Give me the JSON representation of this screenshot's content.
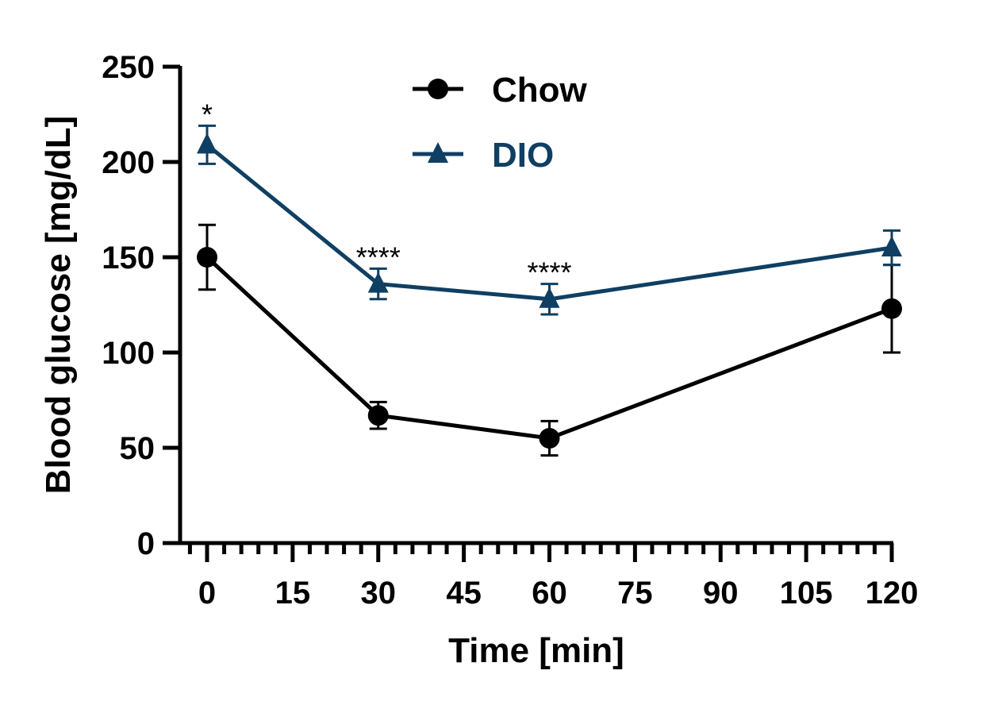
{
  "chart_data": {
    "type": "line",
    "xlabel": "Time [min]",
    "ylabel": "Blood glucose [mg/dL]",
    "xlim": [
      -5,
      120
    ],
    "ylim": [
      0,
      250
    ],
    "x_ticks": [
      0,
      15,
      30,
      45,
      60,
      75,
      90,
      105,
      120
    ],
    "x_minor_step": 3,
    "y_ticks": [
      0,
      50,
      100,
      150,
      200,
      250
    ],
    "grid": false,
    "legend_position": "top-center",
    "x": [
      0,
      30,
      60,
      120
    ],
    "series": [
      {
        "name": "Chow",
        "color": "#000000",
        "marker": "circle",
        "values": [
          150,
          67,
          55,
          123
        ],
        "errors": [
          17,
          7,
          9,
          23
        ]
      },
      {
        "name": "DIO",
        "color": "#0f3f63",
        "marker": "triangle",
        "values": [
          209,
          136,
          128,
          155
        ],
        "errors": [
          10,
          8,
          8,
          9
        ]
      }
    ],
    "annotations": [
      {
        "x": 0,
        "text": "*"
      },
      {
        "x": 30,
        "text": "****"
      },
      {
        "x": 60,
        "text": "****"
      }
    ]
  }
}
